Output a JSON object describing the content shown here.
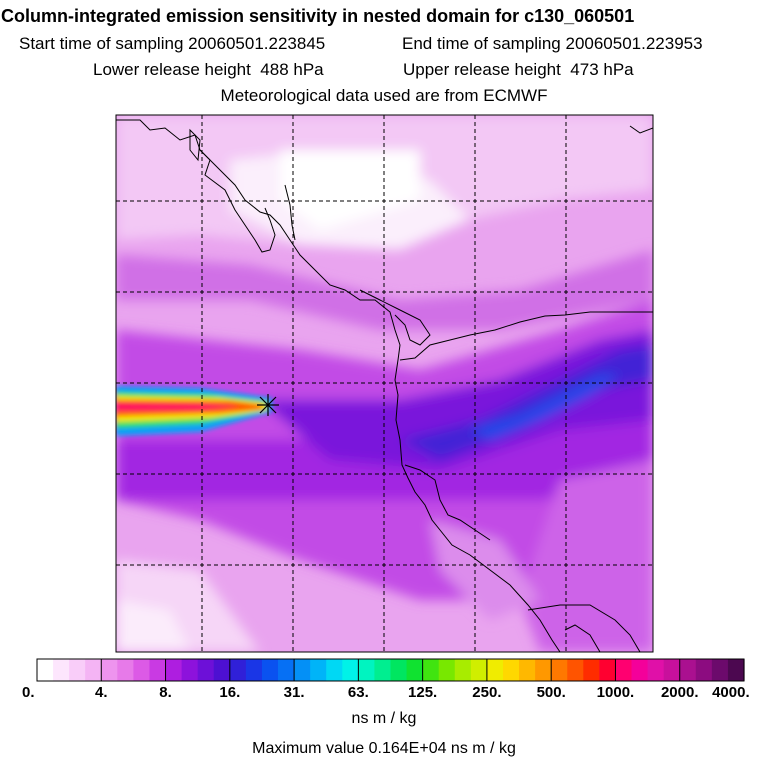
{
  "header": {
    "title": "Column-integrated emission sensitivity in nested domain for c130_060501",
    "start_label": "Start time of sampling",
    "start_value": "20060501.223845",
    "end_label": "End time of sampling",
    "end_value": "20060501.223953",
    "lower_label": "Lower release height",
    "lower_value": "488 hPa",
    "upper_label": "Upper release height",
    "upper_value": "473 hPa",
    "met_line": "Meteorological data used are from ECMWF"
  },
  "colorbar": {
    "tick_labels": [
      "0.",
      "4.",
      "8.",
      "16.",
      "31.",
      "63.",
      "125.",
      "250.",
      "500.",
      "1000.",
      "2000.",
      "4000."
    ],
    "colors": [
      "#ffffff",
      "#fde6fd",
      "#f9cdf9",
      "#f4b4f4",
      "#ee94ee",
      "#e77ae9",
      "#dc5ae6",
      "#c93ae3",
      "#ae1ee0",
      "#8d12dc",
      "#6d10d8",
      "#4d10d2",
      "#3020d8",
      "#1a36e6",
      "#0a52f0",
      "#0670f4",
      "#0490f6",
      "#00b4f8",
      "#00d8f4",
      "#00f2e8",
      "#00f4c0",
      "#00ee90",
      "#00e660",
      "#10e230",
      "#40e410",
      "#78e800",
      "#a8ec00",
      "#d0ee00",
      "#f0ec00",
      "#ffd800",
      "#ffb800",
      "#ff9800",
      "#ff7800",
      "#ff5400",
      "#ff2c00",
      "#ff0030",
      "#ff0070",
      "#f4009a",
      "#e010a8",
      "#c8109c",
      "#aa1090",
      "#8c0c80",
      "#6c0a6c",
      "#4c0850"
    ],
    "units": "ns m / kg",
    "max_label": "Maximum value  0.164E+04 ns m / kg"
  }
}
